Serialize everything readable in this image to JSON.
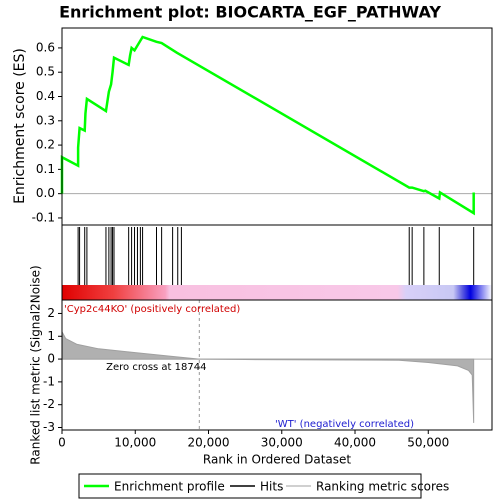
{
  "chart_data": [
    {
      "type": "line",
      "title": "Enrichment plot: BIOCARTA_EGF_PATHWAY",
      "y_label": "Enrichment score (ES)",
      "xlim": [
        0,
        58700
      ],
      "ylim": [
        -0.129,
        0.682
      ],
      "yticks": [
        -0.1,
        {
          "value": 0,
          "label": "0.0"
        },
        0.1,
        0.2,
        0.3,
        0.4,
        0.5,
        0.6
      ],
      "series": [
        {
          "name": "Enrichment profile",
          "color": "#00ff00",
          "x": [
            0,
            0,
            2200,
            2200,
            2400,
            3100,
            3200,
            3400,
            6000,
            6200,
            6400,
            6700,
            6900,
            7100,
            9100,
            9300,
            9500,
            9900,
            10300,
            10700,
            11000,
            12900,
            13600,
            15700,
            47400,
            47800,
            49400,
            49600,
            51500,
            51600,
            56200,
            56200
          ],
          "values": [
            0,
            0.15,
            0.115,
            0.19,
            0.27,
            0.26,
            0.33,
            0.39,
            0.34,
            0.38,
            0.42,
            0.45,
            0.5,
            0.56,
            0.53,
            0.57,
            0.6,
            0.59,
            0.61,
            0.63,
            0.645,
            0.625,
            0.62,
            0.58,
            0.025,
            0.025,
            0.01,
            0.012,
            -0.02,
            0.005,
            -0.08,
            0.005
          ]
        },
        {
          "name": "Hits",
          "color": "#000000",
          "x": [
            0,
            2200,
            2400,
            3100,
            3400,
            6000,
            6400,
            6700,
            6900,
            7100,
            9100,
            9500,
            9900,
            10300,
            10700,
            11000,
            12900,
            13600,
            15100,
            15800,
            16300,
            47400,
            47800,
            49400,
            51500,
            56200
          ]
        }
      ]
    },
    {
      "type": "area",
      "y_label": "Ranked list metric (Signal2Noise)",
      "x_label": "Rank in Ordered Dataset",
      "xlim": [
        0,
        58700
      ],
      "ylim": [
        -3.11,
        2.59
      ],
      "xticks": [
        0,
        {
          "value": 10000,
          "label": "10,000"
        },
        {
          "value": 20000,
          "label": "20,000"
        },
        {
          "value": 30000,
          "label": "30,000"
        },
        {
          "value": 40000,
          "label": "40,000"
        },
        {
          "value": 50000,
          "label": "50,000"
        }
      ],
      "yticks": [
        2,
        1,
        0,
        -1,
        -2,
        -3
      ],
      "positive_label": "'Cyp2c44KO' (positively correlated)",
      "negative_label": "'WT' (negatively correlated)",
      "zero_cross": 18744,
      "zero_cross_label": "Zero cross at 18744",
      "series": [
        {
          "name": "Ranking metric scores",
          "color": "#c0c0c0",
          "x": [
            0,
            500,
            2000,
            5000,
            10000,
            15000,
            18744,
            25000,
            46000,
            50000,
            54000,
            55500,
            56000,
            56200
          ],
          "values": [
            1.2,
            0.9,
            0.65,
            0.45,
            0.28,
            0.12,
            0,
            -0.02,
            -0.05,
            -0.15,
            -0.3,
            -0.5,
            -0.7,
            -2.8
          ]
        }
      ]
    }
  ]
}
